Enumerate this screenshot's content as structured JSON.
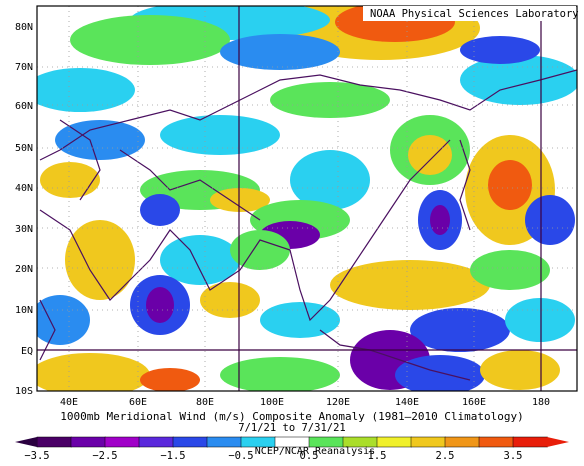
{
  "map": {
    "credit": "NOAA Physical Sciences Laboratory",
    "lat_labels": [
      "80N",
      "70N",
      "60N",
      "50N",
      "40N",
      "30N",
      "20N",
      "10N",
      "EQ",
      "10S"
    ],
    "lon_labels": [
      "40E",
      "60E",
      "80E",
      "100E",
      "120E",
      "140E",
      "160E",
      "180"
    ]
  },
  "caption": {
    "title": "1000mb Meridional Wind (m/s) Composite Anomaly (1981–2010 Climatology)",
    "dates": "7/1/21 to 7/31/21",
    "source": "NCEP/NCAR Reanalysis"
  },
  "colorbar": {
    "tick_labels": [
      "−3.5",
      "−2.5",
      "−1.5",
      "−0.5",
      "0.5",
      "1.5",
      "2.5",
      "3.5"
    ],
    "colors": [
      "#4a0066",
      "#6a00a8",
      "#a000c8",
      "#5a28dc",
      "#2a48e8",
      "#2a8cf0",
      "#2ad0f0",
      "#ffffff",
      "#5ae45a",
      "#aade2a",
      "#f0f02a",
      "#f0c81e",
      "#f09618",
      "#f05a10",
      "#e81e0a"
    ]
  },
  "anomaly_colors": {
    "neg_strong": "#6a00a8",
    "neg": "#2a48e8",
    "neg_weak": "#2ad0f0",
    "pos_weak": "#5ae45a",
    "pos": "#f0c81e",
    "pos_strong": "#f05a10"
  }
}
